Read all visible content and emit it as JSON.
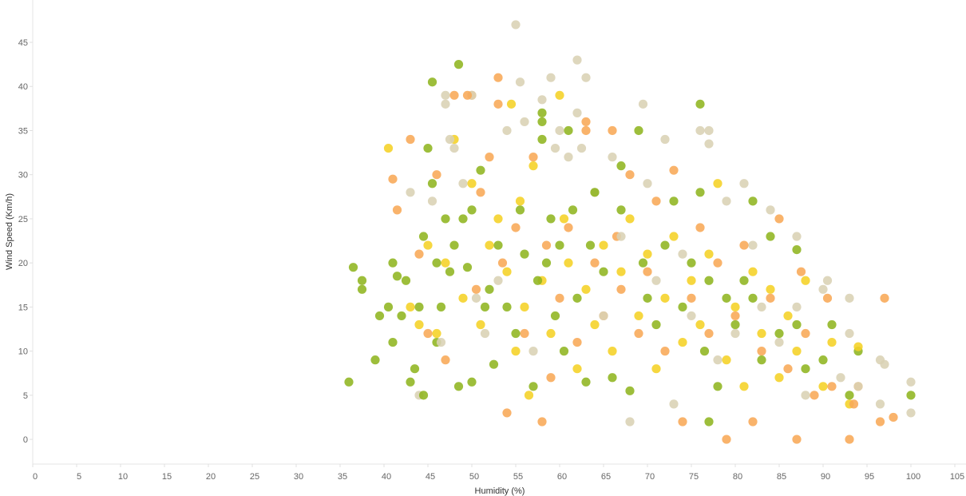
{
  "chart_data": {
    "type": "scatter",
    "title": "",
    "xlabel": "Humidity (%)",
    "ylabel": "Wind Speed (Km/h)",
    "xlim": [
      0,
      105
    ],
    "ylim": [
      -2.8,
      49.8
    ],
    "xticks": [
      0,
      5,
      10,
      15,
      20,
      25,
      30,
      35,
      40,
      45,
      50,
      55,
      60,
      65,
      70,
      75,
      80,
      85,
      90,
      95,
      100,
      105
    ],
    "yticks": [
      0,
      5,
      10,
      15,
      20,
      25,
      30,
      35,
      40,
      45
    ],
    "grid": false,
    "legend": "none",
    "series": [
      {
        "color": "#8fb520",
        "points": [
          [
            36,
            6.5
          ],
          [
            36.5,
            19.5
          ],
          [
            37.5,
            18
          ],
          [
            37.5,
            17
          ],
          [
            39,
            9
          ],
          [
            39.5,
            14
          ],
          [
            40.5,
            15
          ],
          [
            41,
            20
          ],
          [
            41,
            11
          ],
          [
            41.5,
            18.5
          ],
          [
            42,
            14
          ],
          [
            42.5,
            18
          ],
          [
            43,
            6.5
          ],
          [
            43.5,
            8
          ],
          [
            44,
            15
          ],
          [
            44.5,
            5
          ],
          [
            44.5,
            23
          ],
          [
            45,
            33
          ],
          [
            45.5,
            40.5
          ],
          [
            45.5,
            29
          ],
          [
            46,
            20
          ],
          [
            46,
            11
          ],
          [
            46.5,
            15
          ],
          [
            47,
            25
          ],
          [
            47.5,
            19
          ],
          [
            48,
            22
          ],
          [
            48.5,
            42.5
          ],
          [
            48.5,
            6
          ],
          [
            49,
            25
          ],
          [
            49.5,
            19.5
          ],
          [
            50,
            26
          ],
          [
            50,
            6.5
          ],
          [
            51,
            30.5
          ],
          [
            51.5,
            15
          ],
          [
            52,
            17
          ],
          [
            52.5,
            8.5
          ],
          [
            53,
            22
          ],
          [
            54,
            15
          ],
          [
            55,
            12
          ],
          [
            55.5,
            26
          ],
          [
            56,
            21
          ],
          [
            57,
            6
          ],
          [
            57.5,
            18
          ],
          [
            58,
            37
          ],
          [
            58,
            36
          ],
          [
            58,
            34
          ],
          [
            58.5,
            20
          ],
          [
            59,
            25
          ],
          [
            59.5,
            14
          ],
          [
            60,
            22
          ],
          [
            60.5,
            10
          ],
          [
            61,
            35
          ],
          [
            61.5,
            26
          ],
          [
            62,
            16
          ],
          [
            63,
            6.5
          ],
          [
            63.5,
            22
          ],
          [
            64,
            28
          ],
          [
            65,
            19
          ],
          [
            66,
            7
          ],
          [
            67,
            26
          ],
          [
            67,
            31
          ],
          [
            68,
            5.5
          ],
          [
            69,
            35
          ],
          [
            69.5,
            20
          ],
          [
            70,
            16
          ],
          [
            71,
            13
          ],
          [
            72,
            22
          ],
          [
            73,
            27
          ],
          [
            74,
            15
          ],
          [
            75,
            20
          ],
          [
            76,
            38
          ],
          [
            76,
            28
          ],
          [
            76.5,
            10
          ],
          [
            77,
            2
          ],
          [
            77,
            18
          ],
          [
            78,
            6
          ],
          [
            79,
            16
          ],
          [
            80,
            13
          ],
          [
            81,
            18
          ],
          [
            82,
            27
          ],
          [
            82,
            16
          ],
          [
            83,
            9
          ],
          [
            84,
            23
          ],
          [
            85,
            12
          ],
          [
            87,
            21.5
          ],
          [
            87,
            13
          ],
          [
            88,
            8
          ],
          [
            90,
            9
          ],
          [
            91,
            13
          ],
          [
            93,
            5
          ],
          [
            94,
            10
          ],
          [
            100,
            5
          ]
        ]
      },
      {
        "color": "#f5d226",
        "points": [
          [
            40.5,
            33
          ],
          [
            43,
            15
          ],
          [
            44,
            13
          ],
          [
            45,
            22
          ],
          [
            46,
            12
          ],
          [
            47,
            20
          ],
          [
            48,
            34
          ],
          [
            49,
            16
          ],
          [
            50,
            29
          ],
          [
            51,
            13
          ],
          [
            52,
            22
          ],
          [
            53,
            25
          ],
          [
            54,
            19
          ],
          [
            54.5,
            38
          ],
          [
            55,
            10
          ],
          [
            55.5,
            27
          ],
          [
            56,
            15
          ],
          [
            56.5,
            5
          ],
          [
            57,
            31
          ],
          [
            58,
            18
          ],
          [
            59,
            12
          ],
          [
            60,
            39
          ],
          [
            60.5,
            25
          ],
          [
            61,
            20
          ],
          [
            62,
            8
          ],
          [
            63,
            17
          ],
          [
            64,
            13
          ],
          [
            65,
            22
          ],
          [
            66,
            10
          ],
          [
            67,
            19
          ],
          [
            68,
            25
          ],
          [
            69,
            14
          ],
          [
            70,
            21
          ],
          [
            71,
            8
          ],
          [
            72,
            16
          ],
          [
            73,
            23
          ],
          [
            74,
            11
          ],
          [
            75,
            18
          ],
          [
            76,
            13
          ],
          [
            77,
            21
          ],
          [
            78,
            29
          ],
          [
            79,
            9
          ],
          [
            80,
            15
          ],
          [
            81,
            6
          ],
          [
            82,
            19
          ],
          [
            83,
            12
          ],
          [
            84,
            17
          ],
          [
            85,
            7
          ],
          [
            86,
            14
          ],
          [
            87,
            10
          ],
          [
            88,
            18
          ],
          [
            90,
            6
          ],
          [
            91,
            11
          ],
          [
            93,
            4
          ],
          [
            94,
            10.5
          ]
        ]
      },
      {
        "color": "#f8a957",
        "points": [
          [
            41,
            29.5
          ],
          [
            41.5,
            26
          ],
          [
            43,
            34
          ],
          [
            44,
            21
          ],
          [
            45,
            12
          ],
          [
            46,
            30
          ],
          [
            47,
            9
          ],
          [
            48,
            39
          ],
          [
            49.5,
            39
          ],
          [
            50,
            39
          ],
          [
            50.5,
            17
          ],
          [
            51,
            28
          ],
          [
            52,
            32
          ],
          [
            53,
            41
          ],
          [
            53,
            38
          ],
          [
            53.5,
            20
          ],
          [
            54,
            3
          ],
          [
            55,
            24
          ],
          [
            56,
            12
          ],
          [
            57,
            32
          ],
          [
            58,
            2
          ],
          [
            58.5,
            22
          ],
          [
            59,
            7
          ],
          [
            60,
            16
          ],
          [
            61,
            24
          ],
          [
            62,
            11
          ],
          [
            63,
            36
          ],
          [
            63,
            35
          ],
          [
            64,
            20
          ],
          [
            65,
            14
          ],
          [
            66,
            35
          ],
          [
            66.5,
            23
          ],
          [
            67,
            17
          ],
          [
            68,
            30
          ],
          [
            69,
            12
          ],
          [
            70,
            19
          ],
          [
            71,
            27
          ],
          [
            72,
            10
          ],
          [
            73,
            30.5
          ],
          [
            74,
            2
          ],
          [
            75,
            16
          ],
          [
            76,
            24
          ],
          [
            77,
            12
          ],
          [
            78,
            20
          ],
          [
            79,
            0
          ],
          [
            80,
            14
          ],
          [
            81,
            22
          ],
          [
            82,
            2
          ],
          [
            83,
            10
          ],
          [
            84,
            16
          ],
          [
            85,
            25
          ],
          [
            86,
            8
          ],
          [
            87,
            0
          ],
          [
            87.5,
            19
          ],
          [
            88,
            12
          ],
          [
            89,
            5
          ],
          [
            90.5,
            16
          ],
          [
            91,
            6
          ],
          [
            93,
            0
          ],
          [
            93.5,
            4
          ],
          [
            94,
            6
          ],
          [
            96.5,
            2
          ],
          [
            97,
            16
          ],
          [
            98,
            2.5
          ]
        ]
      },
      {
        "color": "#d9d2b4",
        "points": [
          [
            43,
            28
          ],
          [
            44,
            5
          ],
          [
            45.5,
            27
          ],
          [
            46.5,
            11
          ],
          [
            47,
            39
          ],
          [
            47,
            38
          ],
          [
            47.5,
            34
          ],
          [
            48,
            33
          ],
          [
            49,
            29
          ],
          [
            50,
            39
          ],
          [
            50.5,
            16
          ],
          [
            51.5,
            12
          ],
          [
            53,
            18
          ],
          [
            54,
            35
          ],
          [
            55,
            47
          ],
          [
            55.5,
            40.5
          ],
          [
            56,
            36
          ],
          [
            57,
            10
          ],
          [
            58,
            38.5
          ],
          [
            59,
            41
          ],
          [
            59.5,
            33
          ],
          [
            60,
            35
          ],
          [
            61,
            32
          ],
          [
            62,
            43
          ],
          [
            62,
            37
          ],
          [
            62.5,
            33
          ],
          [
            63,
            41
          ],
          [
            64,
            28
          ],
          [
            65,
            14
          ],
          [
            66,
            32
          ],
          [
            67,
            23
          ],
          [
            68,
            2
          ],
          [
            69.5,
            38
          ],
          [
            70,
            29
          ],
          [
            71,
            18
          ],
          [
            72,
            34
          ],
          [
            73,
            4
          ],
          [
            74,
            21
          ],
          [
            75,
            14
          ],
          [
            76,
            35
          ],
          [
            77,
            35
          ],
          [
            77,
            33.5
          ],
          [
            78,
            9
          ],
          [
            79,
            27
          ],
          [
            80,
            12
          ],
          [
            81,
            29
          ],
          [
            82,
            22
          ],
          [
            83,
            15
          ],
          [
            84,
            26
          ],
          [
            85,
            11
          ],
          [
            87,
            23
          ],
          [
            87,
            15
          ],
          [
            88,
            5
          ],
          [
            90,
            17
          ],
          [
            90.5,
            18
          ],
          [
            92,
            7
          ],
          [
            93,
            16
          ],
          [
            93,
            12
          ],
          [
            94,
            6
          ],
          [
            96.5,
            9
          ],
          [
            96.5,
            4
          ],
          [
            97,
            8.5
          ],
          [
            100,
            6.5
          ],
          [
            100,
            3
          ]
        ]
      }
    ]
  }
}
